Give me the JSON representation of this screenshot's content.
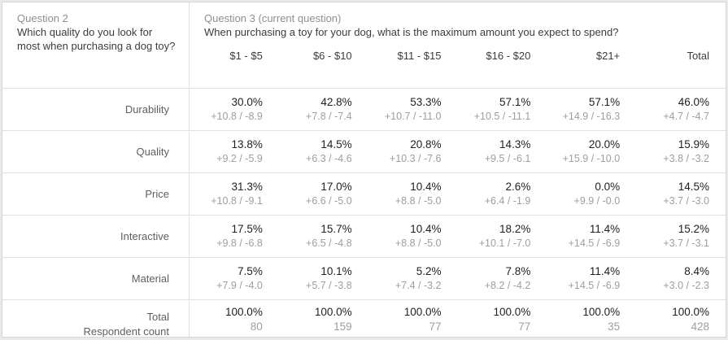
{
  "left_panel": {
    "label": "Question 2",
    "question": "Which quality do you look for most when purchasing a dog toy?"
  },
  "top_panel": {
    "label": "Question 3 (current question)",
    "question": "When purchasing a toy for your dog, what is the maximum amount you expect to spend?"
  },
  "columns": [
    "$1 - $5",
    "$6 - $10",
    "$11 - $15",
    "$16 - $20",
    "$21+",
    "Total"
  ],
  "rows": [
    {
      "label": "Durability",
      "cells": [
        {
          "pct": "30.0%",
          "ci": "+10.8 / -8.9"
        },
        {
          "pct": "42.8%",
          "ci": "+7.8 / -7.4"
        },
        {
          "pct": "53.3%",
          "ci": "+10.7 / -11.0"
        },
        {
          "pct": "57.1%",
          "ci": "+10.5 / -11.1"
        },
        {
          "pct": "57.1%",
          "ci": "+14.9 / -16.3"
        },
        {
          "pct": "46.0%",
          "ci": "+4.7 / -4.7"
        }
      ]
    },
    {
      "label": "Quality",
      "cells": [
        {
          "pct": "13.8%",
          "ci": "+9.2 / -5.9"
        },
        {
          "pct": "14.5%",
          "ci": "+6.3 / -4.6"
        },
        {
          "pct": "20.8%",
          "ci": "+10.3 / -7.6"
        },
        {
          "pct": "14.3%",
          "ci": "+9.5 / -6.1"
        },
        {
          "pct": "20.0%",
          "ci": "+15.9 / -10.0"
        },
        {
          "pct": "15.9%",
          "ci": "+3.8 / -3.2"
        }
      ]
    },
    {
      "label": "Price",
      "cells": [
        {
          "pct": "31.3%",
          "ci": "+10.8 / -9.1"
        },
        {
          "pct": "17.0%",
          "ci": "+6.6 / -5.0"
        },
        {
          "pct": "10.4%",
          "ci": "+8.8 / -5.0"
        },
        {
          "pct": "2.6%",
          "ci": "+6.4 / -1.9"
        },
        {
          "pct": "0.0%",
          "ci": "+9.9 / -0.0"
        },
        {
          "pct": "14.5%",
          "ci": "+3.7 / -3.0"
        }
      ]
    },
    {
      "label": "Interactive",
      "cells": [
        {
          "pct": "17.5%",
          "ci": "+9.8 / -6.8"
        },
        {
          "pct": "15.7%",
          "ci": "+6.5 / -4.8"
        },
        {
          "pct": "10.4%",
          "ci": "+8.8 / -5.0"
        },
        {
          "pct": "18.2%",
          "ci": "+10.1 / -7.0"
        },
        {
          "pct": "11.4%",
          "ci": "+14.5 / -6.9"
        },
        {
          "pct": "15.2%",
          "ci": "+3.7 / -3.1"
        }
      ]
    },
    {
      "label": "Material",
      "cells": [
        {
          "pct": "7.5%",
          "ci": "+7.9 / -4.0"
        },
        {
          "pct": "10.1%",
          "ci": "+5.7 / -3.8"
        },
        {
          "pct": "5.2%",
          "ci": "+7.4 / -3.2"
        },
        {
          "pct": "7.8%",
          "ci": "+8.2 / -4.2"
        },
        {
          "pct": "11.4%",
          "ci": "+14.5 / -6.9"
        },
        {
          "pct": "8.4%",
          "ci": "+3.0 / -2.3"
        }
      ]
    }
  ],
  "total_row": {
    "label_line1": "Total",
    "label_line2": "Respondent count",
    "cells": [
      {
        "pct": "100.0%",
        "count": "80"
      },
      {
        "pct": "100.0%",
        "count": "159"
      },
      {
        "pct": "100.0%",
        "count": "77"
      },
      {
        "pct": "100.0%",
        "count": "77"
      },
      {
        "pct": "100.0%",
        "count": "35"
      },
      {
        "pct": "100.0%",
        "count": "428"
      }
    ]
  },
  "colors": {
    "divider": "#e0e0e0",
    "question_label": "#8f8f8f",
    "question_text": "#3c3c3c",
    "row_label": "#5f5f5f",
    "percent_text": "#1f1f1f",
    "ci_text": "#9e9e9e"
  }
}
